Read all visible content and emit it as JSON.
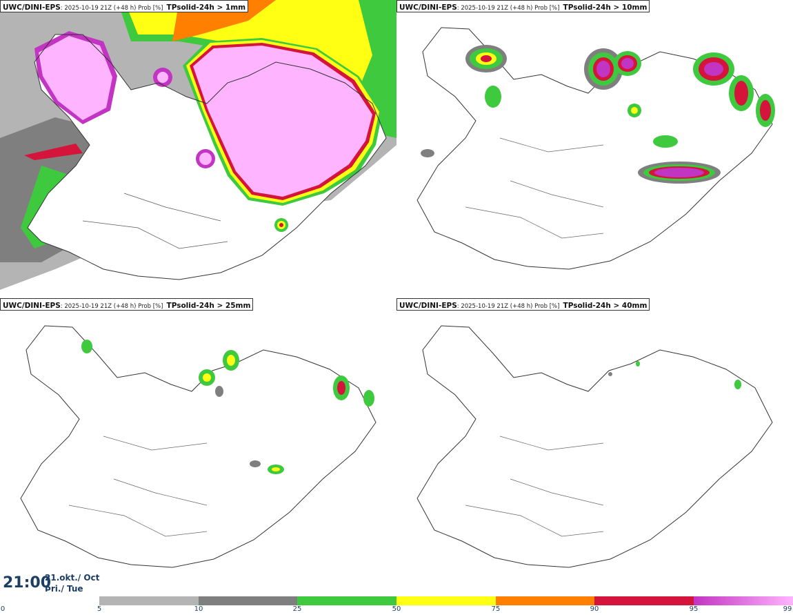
{
  "panels": [
    {
      "model": "UWC/DINI-EPS",
      "meta": ": 2025-10-19 21Z (+48 h) Prob [%]",
      "variable": "TPsolid-24h > 1mm"
    },
    {
      "model": "UWC/DINI-EPS",
      "meta": ": 2025-10-19 21Z (+48 h) Prob [%]",
      "variable": "TPsolid-24h > 10mm"
    },
    {
      "model": "UWC/DINI-EPS",
      "meta": ": 2025-10-19 21Z (+48 h) Prob [%]",
      "variable": "TPsolid-24h > 25mm"
    },
    {
      "model": "UWC/DINI-EPS",
      "meta": ": 2025-10-19 21Z (+48 h) Prob [%]",
      "variable": "TPsolid-24h > 40mm"
    }
  ],
  "time": {
    "clock": "21:00",
    "date_line1": "21.okt./ Oct",
    "date_line2": "Þri./ Tue"
  },
  "legend": {
    "ticks": [
      "0",
      "5",
      "10",
      "25",
      "50",
      "75",
      "90",
      "95",
      "99"
    ],
    "colors": [
      "#b4b4b4",
      "#7f7f7f",
      "#3ec93e",
      "#ffff14",
      "#ff7f00",
      "#d4143a",
      "#c234c2",
      "#ffb4ff"
    ]
  }
}
